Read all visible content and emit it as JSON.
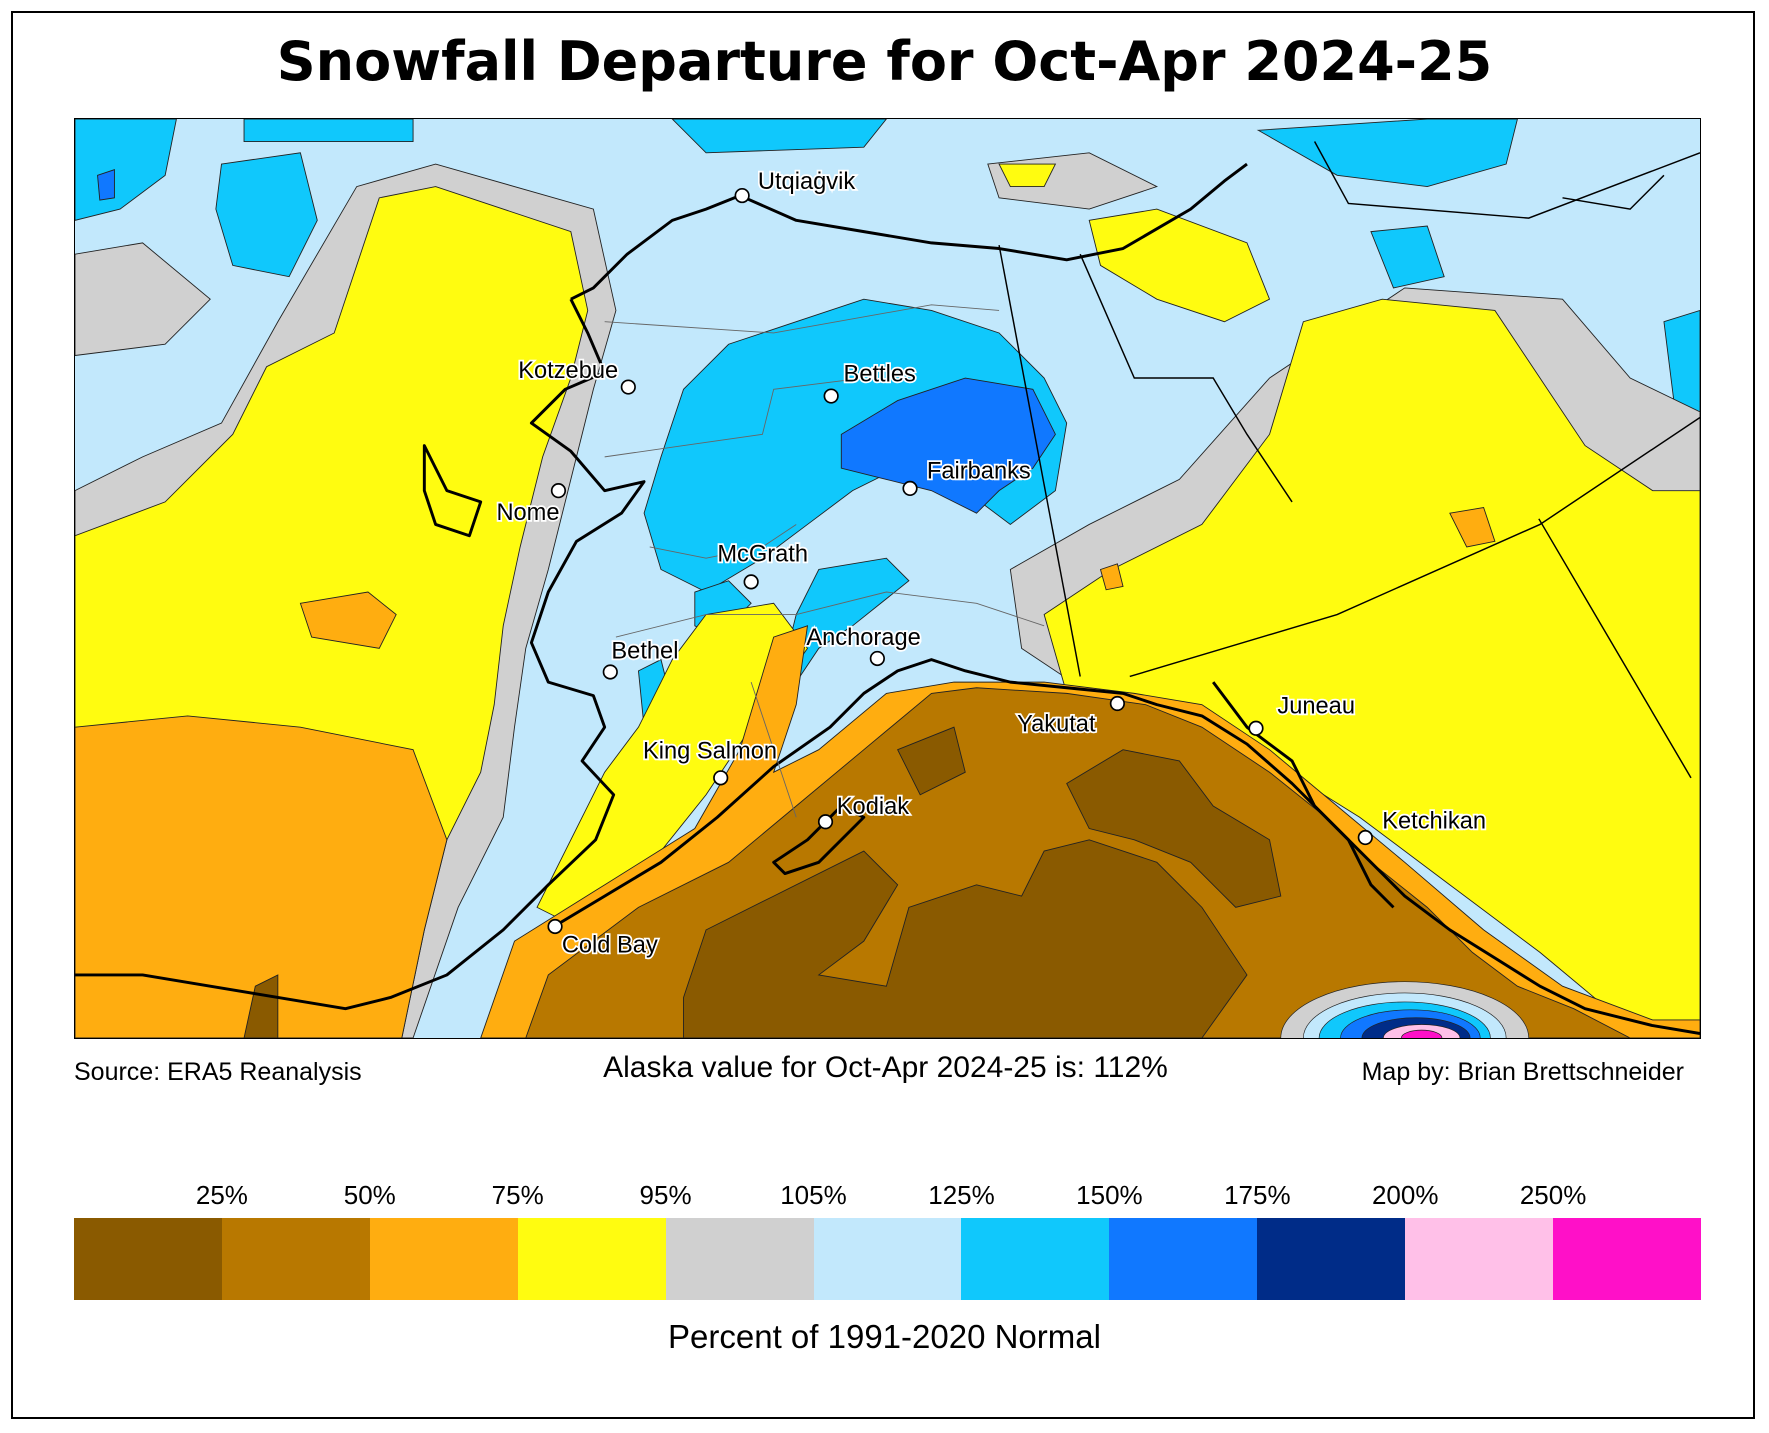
{
  "title": "Snowfall Departure for Oct-Apr 2024-25",
  "footer": {
    "source": "Source: ERA5 Reanalysis",
    "statewide": "Alaska value for Oct-Apr 2024-25 is: 112%",
    "credit": "Map by: Brian Brettschneider"
  },
  "cities": {
    "utqiagvik": "Utqiaġvik",
    "kotzebue": "Kotzebue",
    "bettles": "Bettles",
    "nome": "Nome",
    "fairbanks": "Fairbanks",
    "mcgrath": "McGrath",
    "bethel": "Bethel",
    "anchorage": "Anchorage",
    "yakutat": "Yakutat",
    "juneau": "Juneau",
    "king_salmon": "King Salmon",
    "kodiak": "Kodiak",
    "ketchikan": "Ketchikan",
    "cold_bay": "Cold Bay"
  },
  "legend": {
    "label": "Percent of 1991-2020 Normal",
    "ticks": [
      "25%",
      "50%",
      "75%",
      "95%",
      "105%",
      "125%",
      "150%",
      "175%",
      "200%",
      "250%"
    ],
    "colors": [
      "#8a5a00",
      "#b87800",
      "#ffad10",
      "#fffc10",
      "#d0d0d0",
      "#c2e8fc",
      "#10c8fc",
      "#1078ff",
      "#002c88",
      "#ffc0e8",
      "#ff10c8"
    ]
  }
}
